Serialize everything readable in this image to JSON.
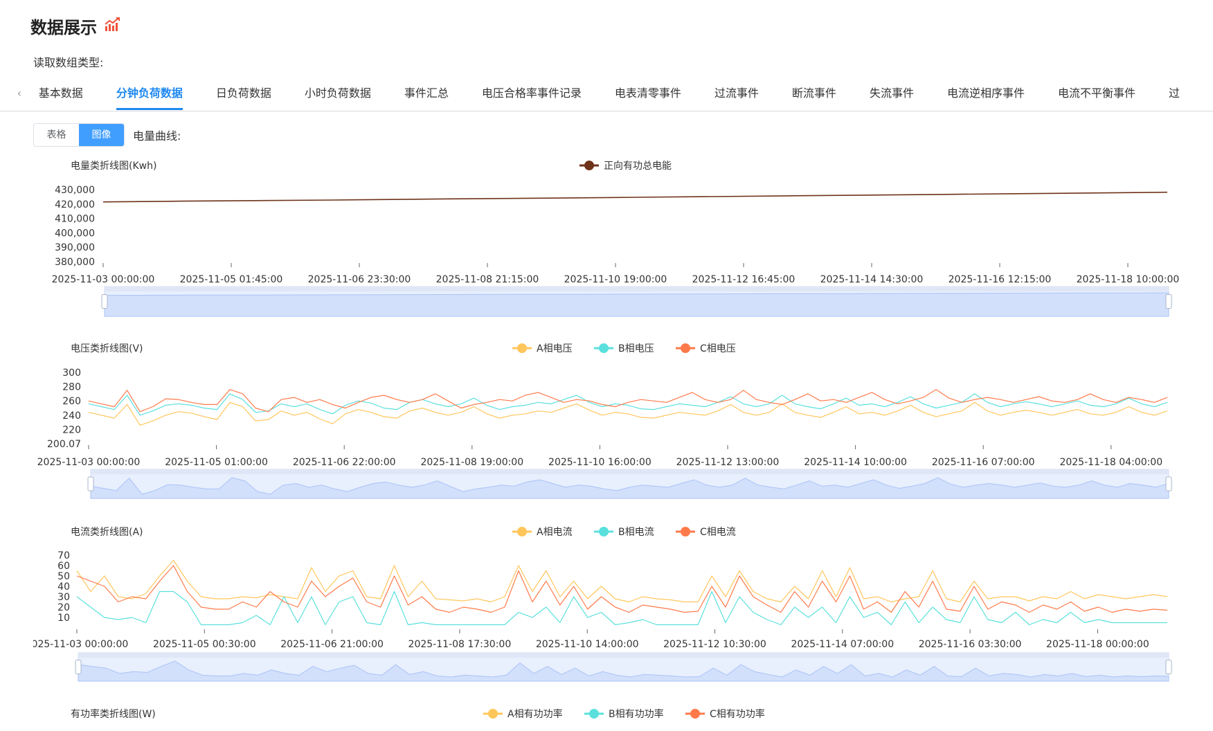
{
  "header": {
    "title": "数据展示",
    "icon": "chart-trend-icon",
    "read_type_label": "读取数组类型:"
  },
  "tabs": {
    "items": [
      "基本数据",
      "分钟负荷数据",
      "日负荷数据",
      "小时负荷数据",
      "事件汇总",
      "电压合格率事件记录",
      "电表清零事件",
      "过流事件",
      "断流事件",
      "失流事件",
      "电流逆相序事件",
      "电流不平衡事件",
      "过"
    ],
    "active_index": 1
  },
  "view_toggle": {
    "table_label": "表格",
    "chart_label": "图像",
    "active": "图像"
  },
  "curve_label": "电量曲线:",
  "colors": {
    "accent": "#1e88f0",
    "phaseA": "#ffc65c",
    "phaseB": "#5ae0dc",
    "phaseC": "#ff7a4a",
    "energy": "#6e3219",
    "datazoom": "#a9c2f7"
  },
  "chart_data": [
    {
      "type": "line",
      "title": "电量类折线图(Kwh)",
      "yticks": [
        "430,000",
        "420,000",
        "410,000",
        "400,000",
        "390,000",
        "380,000"
      ],
      "ylim": [
        380000,
        430000
      ],
      "xticks": [
        "2025-11-03 00:00:00",
        "2025-11-05 01:45:00",
        "2025-11-06 23:30:00",
        "2025-11-08 21:15:00",
        "2025-11-10 19:00:00",
        "2025-11-12 16:45:00",
        "2025-11-14 14:30:00",
        "2025-11-16 12:15:00",
        "2025-11-18 10:00:00"
      ],
      "series": [
        {
          "name": "正向有功总电能",
          "color": "#6e3219",
          "values": [
            421500,
            422000,
            422400,
            422800,
            423300,
            423800,
            424200,
            424700,
            425200,
            425700,
            426200,
            426700,
            427200,
            427700,
            428200
          ]
        }
      ],
      "datazoom": {
        "start_percent": 0,
        "end_percent": 100
      }
    },
    {
      "type": "line",
      "title": "电压类折线图(V)",
      "yticks": [
        "300",
        "280",
        "260",
        "240",
        "220",
        "200.07"
      ],
      "ylim": [
        200.07,
        300
      ],
      "xticks": [
        "2025-11-03 00:00:00",
        "2025-11-05 01:00:00",
        "2025-11-06 22:00:00",
        "2025-11-08 19:00:00",
        "2025-11-10 16:00:00",
        "2025-11-12 13:00:00",
        "2025-11-14 10:00:00",
        "2025-11-16 07:00:00",
        "2025-11-18 04:00:00"
      ],
      "series": [
        {
          "name": "A相电压",
          "color": "#ffc65c",
          "values": [
            244,
            240,
            236,
            255,
            226,
            232,
            240,
            245,
            243,
            238,
            234,
            258,
            252,
            232,
            234,
            246,
            240,
            244,
            235,
            228,
            242,
            248,
            244,
            238,
            236,
            246,
            250,
            244,
            240,
            244,
            252,
            242,
            236,
            240,
            242,
            246,
            244,
            250,
            256,
            247,
            240,
            244,
            242,
            237,
            236,
            240,
            244,
            242,
            240,
            246,
            255,
            244,
            240,
            244,
            256,
            244,
            240,
            237,
            244,
            252,
            242,
            244,
            240,
            246,
            254,
            244,
            238,
            242,
            246,
            258,
            246,
            240,
            244,
            247,
            244,
            240,
            244,
            248,
            242,
            240,
            244,
            252,
            244,
            240,
            246
          ]
        },
        {
          "name": "B相电压",
          "color": "#5ae0dc",
          "values": [
            256,
            252,
            248,
            268,
            240,
            246,
            254,
            256,
            254,
            250,
            248,
            270,
            262,
            244,
            246,
            256,
            252,
            256,
            248,
            242,
            254,
            260,
            257,
            250,
            248,
            258,
            262,
            256,
            252,
            256,
            264,
            254,
            248,
            252,
            254,
            258,
            256,
            262,
            268,
            258,
            252,
            256,
            254,
            249,
            248,
            252,
            256,
            254,
            252,
            258,
            266,
            256,
            252,
            256,
            268,
            256,
            252,
            249,
            256,
            264,
            254,
            256,
            252,
            258,
            266,
            256,
            250,
            254,
            258,
            270,
            258,
            252,
            256,
            259,
            256,
            252,
            256,
            260,
            254,
            252,
            256,
            264,
            256,
            252,
            258
          ]
        },
        {
          "name": "C相电压",
          "color": "#ff7a4a",
          "values": [
            260,
            256,
            252,
            275,
            245,
            252,
            263,
            262,
            258,
            255,
            255,
            276,
            270,
            250,
            245,
            262,
            265,
            258,
            262,
            255,
            250,
            258,
            265,
            268,
            262,
            258,
            262,
            270,
            260,
            250,
            255,
            258,
            262,
            260,
            268,
            272,
            265,
            258,
            262,
            260,
            255,
            252,
            258,
            262,
            260,
            258,
            265,
            272,
            262,
            258,
            262,
            275,
            262,
            258,
            255,
            262,
            270,
            260,
            262,
            258,
            265,
            272,
            262,
            256,
            260,
            265,
            276,
            264,
            258,
            262,
            265,
            262,
            258,
            262,
            266,
            260,
            258,
            262,
            270,
            262,
            258,
            265,
            262,
            258,
            265
          ]
        }
      ],
      "datazoom": {
        "start_percent": 0,
        "end_percent": 100
      }
    },
    {
      "type": "line",
      "title": "电流类折线图(A)",
      "yticks": [
        "70",
        "60",
        "50",
        "40",
        "30",
        "20",
        "10"
      ],
      "ylim": [
        0,
        70
      ],
      "xticks": [
        "2025-11-03 00:00:00",
        "2025-11-05 00:30:00",
        "2025-11-06 21:00:00",
        "2025-11-08 17:30:00",
        "2025-11-10 14:00:00",
        "2025-11-12 10:30:00",
        "2025-11-14 07:00:00",
        "2025-11-16 03:30:00",
        "2025-11-18 00:00:00"
      ],
      "series": [
        {
          "name": "A相电流",
          "color": "#ffc65c",
          "values": [
            55,
            35,
            50,
            30,
            28,
            33,
            50,
            65,
            45,
            30,
            28,
            28,
            30,
            29,
            32,
            30,
            28,
            58,
            35,
            50,
            55,
            30,
            28,
            60,
            30,
            45,
            28,
            27,
            26,
            28,
            25,
            30,
            60,
            35,
            55,
            30,
            45,
            28,
            40,
            28,
            25,
            30,
            28,
            27,
            25,
            25,
            50,
            30,
            55,
            35,
            28,
            25,
            40,
            28,
            55,
            30,
            58,
            28,
            30,
            25,
            28,
            30,
            55,
            28,
            25,
            45,
            28,
            30,
            30,
            26,
            30,
            28,
            35,
            28,
            32,
            30,
            28,
            30,
            32,
            30
          ]
        },
        {
          "name": "B相电流",
          "color": "#5ae0dc",
          "values": [
            30,
            20,
            10,
            8,
            10,
            5,
            35,
            35,
            25,
            3,
            3,
            3,
            5,
            12,
            3,
            30,
            5,
            30,
            3,
            25,
            30,
            5,
            3,
            35,
            3,
            5,
            3,
            3,
            3,
            3,
            3,
            3,
            15,
            10,
            20,
            5,
            30,
            10,
            15,
            3,
            5,
            8,
            3,
            3,
            3,
            3,
            35,
            5,
            30,
            15,
            8,
            3,
            20,
            10,
            20,
            5,
            30,
            10,
            15,
            3,
            25,
            5,
            20,
            8,
            5,
            30,
            8,
            5,
            15,
            3,
            8,
            5,
            15,
            5,
            8,
            5,
            5,
            5,
            5,
            5
          ]
        },
        {
          "name": "C相电流",
          "color": "#ff7a4a",
          "values": [
            50,
            45,
            40,
            25,
            30,
            28,
            45,
            60,
            35,
            20,
            18,
            18,
            25,
            20,
            35,
            25,
            20,
            45,
            30,
            40,
            48,
            25,
            20,
            50,
            22,
            30,
            18,
            15,
            20,
            18,
            15,
            20,
            55,
            25,
            45,
            22,
            40,
            18,
            30,
            20,
            15,
            22,
            20,
            18,
            15,
            16,
            40,
            20,
            50,
            30,
            22,
            15,
            35,
            20,
            45,
            25,
            50,
            18,
            25,
            15,
            35,
            20,
            45,
            18,
            16,
            40,
            18,
            25,
            22,
            15,
            22,
            18,
            25,
            16,
            20,
            15,
            18,
            16,
            18,
            17
          ]
        }
      ],
      "datazoom": {
        "start_percent": 0,
        "end_percent": 100
      }
    },
    {
      "type": "line",
      "title": "有功率类折线图(W)",
      "series": [
        {
          "name": "A相有功功率",
          "color": "#ffc65c"
        },
        {
          "name": "B相有功功率",
          "color": "#5ae0dc"
        },
        {
          "name": "C相有功功率",
          "color": "#ff7a4a"
        }
      ]
    }
  ]
}
